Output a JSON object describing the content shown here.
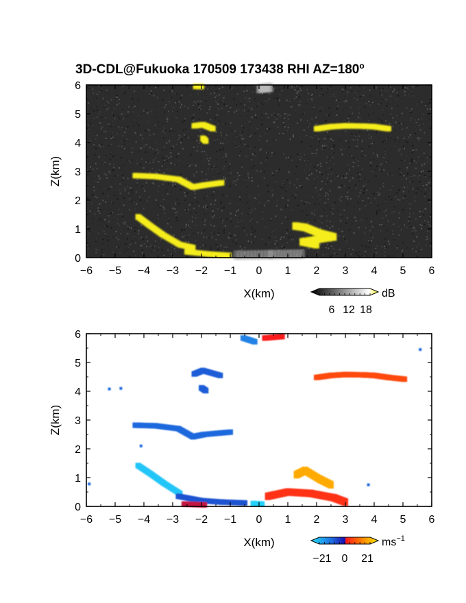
{
  "figure_title": "3D-CDL@Fukuoka 170509 173438 RHI AZ=180",
  "title_degree_symbol": "o",
  "colors": {
    "axes_frame": "#000000",
    "top_background": "#2c2c2c",
    "top_echo": "#f6ee1a",
    "bottom_background": "#ffffff"
  },
  "chart_data": [
    {
      "type": "heatmap",
      "panel": "top",
      "field": "signal intensity (dB)",
      "xlabel": "X(km)",
      "ylabel": "Z(km)",
      "xlim": [
        -6,
        6
      ],
      "ylim": [
        0,
        6
      ],
      "xticks": [
        -6,
        -5,
        -4,
        -3,
        -2,
        -1,
        0,
        1,
        2,
        3,
        4,
        5,
        6
      ],
      "yticks": [
        0,
        1,
        2,
        3,
        4,
        5,
        6
      ],
      "grid": false,
      "colorbar": {
        "unit": "dB",
        "tick_labels": [
          "6",
          "12",
          "18"
        ],
        "range": [
          0,
          21
        ],
        "colors": [
          "#000000",
          "#ffffff",
          "#f6ee1a"
        ]
      },
      "features": [
        {
          "name": "layer-4.5km-right",
          "points": [
            [
              2.0,
              4.48
            ],
            [
              2.5,
              4.55
            ],
            [
              3.0,
              4.58
            ],
            [
              3.6,
              4.57
            ],
            [
              4.0,
              4.55
            ],
            [
              4.5,
              4.48
            ]
          ],
          "value": 19
        },
        {
          "name": "patch-4.6km-left",
          "points": [
            [
              -2.25,
              4.58
            ],
            [
              -1.95,
              4.62
            ],
            [
              -1.6,
              4.48
            ]
          ],
          "value": 19
        },
        {
          "name": "patch-4.1km",
          "points": [
            [
              -1.95,
              4.15
            ],
            [
              -1.85,
              4.05
            ]
          ],
          "value": 19
        },
        {
          "name": "patch-top",
          "points": [
            [
              -2.2,
              5.95
            ],
            [
              -2.0,
              5.95
            ]
          ],
          "value": 19
        },
        {
          "name": "layer-2.7km",
          "points": [
            [
              -4.3,
              2.85
            ],
            [
              -3.6,
              2.82
            ],
            [
              -2.8,
              2.72
            ],
            [
              -2.3,
              2.45
            ],
            [
              -1.9,
              2.52
            ],
            [
              -1.3,
              2.6
            ]
          ],
          "value": 19
        },
        {
          "name": "band-low-left",
          "points": [
            [
              -4.2,
              1.42
            ],
            [
              -3.8,
              1.12
            ],
            [
              -3.35,
              0.8
            ],
            [
              -2.75,
              0.45
            ],
            [
              -2.3,
              0.35
            ]
          ],
          "value": 19
        },
        {
          "name": "band-low-surface",
          "points": [
            [
              -2.5,
              0.2
            ],
            [
              -1.7,
              0.12
            ],
            [
              -1.05,
              0.08
            ]
          ],
          "value": 19
        },
        {
          "name": "cloud-1km",
          "points": [
            [
              1.25,
              1.1
            ],
            [
              1.6,
              1.05
            ],
            [
              2.1,
              0.85
            ],
            [
              2.6,
              0.72
            ],
            [
              1.5,
              0.55
            ],
            [
              2.0,
              0.45
            ]
          ],
          "value": 19
        },
        {
          "name": "surface-glow",
          "points": [
            [
              -0.8,
              0.08
            ],
            [
              0.4,
              0.1
            ],
            [
              1.5,
              0.12
            ]
          ],
          "value": 12
        },
        {
          "name": "top-glow",
          "points": [
            [
              0.0,
              5.88
            ],
            [
              0.4,
              5.92
            ]
          ],
          "value": 14
        }
      ]
    },
    {
      "type": "heatmap",
      "panel": "bottom",
      "field": "Doppler velocity (m/s)",
      "xlabel": "X(km)",
      "ylabel": "Z(km)",
      "xlim": [
        -6,
        6
      ],
      "ylim": [
        0,
        6
      ],
      "xticks": [
        -6,
        -5,
        -4,
        -3,
        -2,
        -1,
        0,
        1,
        2,
        3,
        4,
        5,
        6
      ],
      "yticks": [
        0,
        1,
        2,
        3,
        4,
        5,
        6
      ],
      "grid": false,
      "colorbar": {
        "unit": "ms",
        "unit_exponent": "−1",
        "tick_labels": [
          "−21",
          "0",
          "21"
        ],
        "range": [
          -21,
          21
        ],
        "colors": [
          "#22e0ff",
          "#1f6fe0",
          "#1a10b0",
          "#ff1a1a",
          "#ff8000",
          "#ffe800"
        ]
      },
      "features": [
        {
          "name": "top-inbound",
          "points": [
            [
              -0.55,
              5.85
            ],
            [
              -0.15,
              5.72
            ]
          ],
          "value": -14
        },
        {
          "name": "top-outbound",
          "points": [
            [
              0.2,
              5.85
            ],
            [
              0.8,
              5.9
            ]
          ],
          "value": 4
        },
        {
          "name": "layer-4.5km-right",
          "points": [
            [
              2.0,
              4.48
            ],
            [
              2.5,
              4.55
            ],
            [
              3.0,
              4.58
            ],
            [
              3.6,
              4.57
            ],
            [
              4.0,
              4.55
            ],
            [
              4.5,
              4.48
            ],
            [
              5.05,
              4.42
            ]
          ],
          "value": 8
        },
        {
          "name": "patch-4.6km-left",
          "points": [
            [
              -2.25,
              4.6
            ],
            [
              -1.95,
              4.72
            ],
            [
              -1.35,
              4.55
            ]
          ],
          "value": -11
        },
        {
          "name": "patch-4.1km",
          "points": [
            [
              -2.0,
              4.12
            ],
            [
              -1.85,
              4.02
            ]
          ],
          "value": -11
        },
        {
          "name": "layer-2.7km",
          "points": [
            [
              -4.3,
              2.82
            ],
            [
              -3.6,
              2.8
            ],
            [
              -2.8,
              2.7
            ],
            [
              -2.3,
              2.42
            ],
            [
              -1.9,
              2.5
            ],
            [
              -1.0,
              2.58
            ]
          ],
          "value": -12
        },
        {
          "name": "band-low-left",
          "points": [
            [
              -4.2,
              1.42
            ],
            [
              -3.75,
              1.12
            ],
            [
              -3.3,
              0.8
            ],
            [
              -2.75,
              0.45
            ]
          ],
          "value": -19
        },
        {
          "name": "band-low-mid",
          "points": [
            [
              -2.8,
              0.35
            ],
            [
              -2.0,
              0.2
            ],
            [
              -1.3,
              0.15
            ],
            [
              -0.5,
              0.12
            ]
          ],
          "value": -10
        },
        {
          "name": "surface-inbound",
          "points": [
            [
              -2.6,
              0.08
            ],
            [
              -1.9,
              0.05
            ]
          ],
          "value": 2
        },
        {
          "name": "cloud-outbound-upper",
          "points": [
            [
              1.3,
              1.1
            ],
            [
              1.6,
              1.25
            ],
            [
              2.1,
              0.95
            ],
            [
              2.5,
              0.75
            ]
          ],
          "value": 16
        },
        {
          "name": "cloud-outbound-lower",
          "points": [
            [
              0.3,
              0.35
            ],
            [
              1.0,
              0.5
            ],
            [
              1.8,
              0.45
            ],
            [
              2.6,
              0.3
            ],
            [
              3.0,
              0.15
            ]
          ],
          "value": 6
        },
        {
          "name": "surface-near",
          "points": [
            [
              -0.2,
              0.1
            ],
            [
              0.1,
              0.08
            ]
          ],
          "value": -20
        },
        {
          "name": "isolated-points",
          "points": [
            [
              -4.8,
              4.1
            ],
            [
              -5.2,
              4.08
            ],
            [
              5.6,
              5.45
            ],
            [
              -4.1,
              2.1
            ],
            [
              -5.9,
              0.78
            ],
            [
              3.8,
              0.75
            ]
          ],
          "value": -12
        }
      ]
    }
  ]
}
